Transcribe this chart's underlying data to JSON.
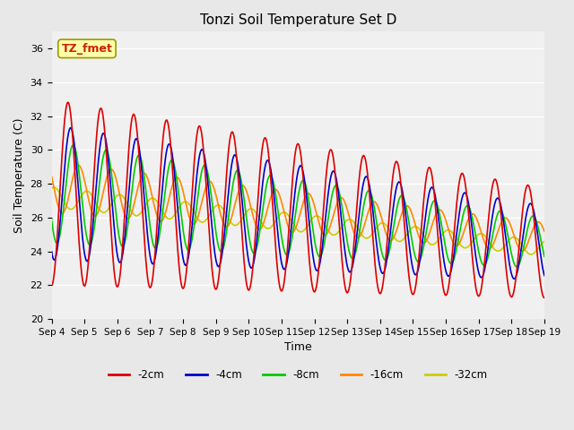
{
  "title": "Tonzi Soil Temperature Set D",
  "xlabel": "Time",
  "ylabel": "Soil Temperature (C)",
  "ylim": [
    20,
    37
  ],
  "yticks": [
    20,
    22,
    24,
    26,
    28,
    30,
    32,
    34,
    36
  ],
  "xtick_labels": [
    "Sep 4",
    "Sep 5",
    "Sep 6",
    "Sep 7",
    "Sep 8",
    "Sep 9",
    "Sep 10",
    "Sep 11",
    "Sep 12",
    "Sep 13",
    "Sep 14",
    "Sep 15",
    "Sep 16",
    "Sep 17",
    "Sep 18",
    "Sep 19"
  ],
  "legend_labels": [
    "-2cm",
    "-4cm",
    "-8cm",
    "-16cm",
    "-32cm"
  ],
  "line_colors": [
    "#dd0000",
    "#0000cc",
    "#00cc00",
    "#ff8800",
    "#cccc00"
  ],
  "annotation_text": "TZ_fmet",
  "annotation_color": "#cc2200",
  "annotation_bg": "#ffffaa",
  "background_color": "#e8e8e8",
  "plot_bg_color": "#f0f0f0",
  "n_days": 15,
  "samples_per_day": 48,
  "start_day": 4
}
